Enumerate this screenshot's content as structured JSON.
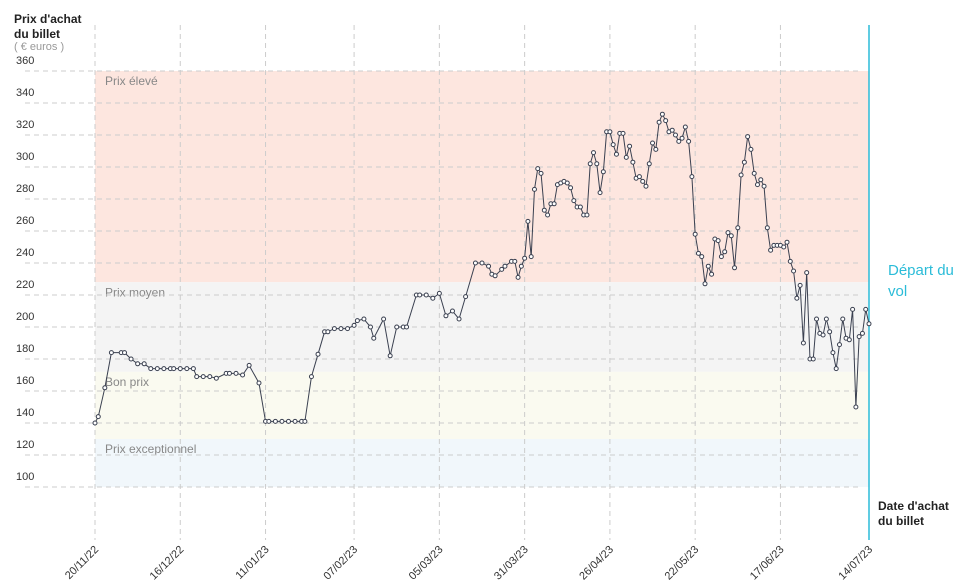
{
  "chart_data": {
    "type": "line",
    "y_label": "Prix d'achat du billet",
    "y_unit": "( € euros )",
    "x_label": "Date d'achat du billet",
    "annotation": {
      "text": "Départ du vol",
      "x": 236,
      "color": "#2bbcd8"
    },
    "bands": [
      {
        "name": "Prix élevé",
        "from": 228,
        "to": 360,
        "color": "#fde6df"
      },
      {
        "name": "Prix moyen",
        "from": 172,
        "to": 228,
        "color": "#f4f4f4"
      },
      {
        "name": "Bon prix",
        "from": 130,
        "to": 172,
        "color": "#fafaf0"
      },
      {
        "name": "Prix exceptionnel",
        "from": 100,
        "to": 130,
        "color": "#f1f7fb"
      }
    ],
    "xlim": [
      0,
      236
    ],
    "ylim": [
      100,
      360
    ],
    "yticks": [
      100,
      120,
      140,
      160,
      180,
      200,
      220,
      240,
      260,
      280,
      300,
      320,
      340,
      360
    ],
    "xticks": [
      {
        "value": 0,
        "label": "20/11/22"
      },
      {
        "value": 26,
        "label": "16/12/22"
      },
      {
        "value": 52,
        "label": "11/01/23"
      },
      {
        "value": 79,
        "label": "07/02/23"
      },
      {
        "value": 105,
        "label": "05/03/23"
      },
      {
        "value": 131,
        "label": "31/03/23"
      },
      {
        "value": 157,
        "label": "26/04/23"
      },
      {
        "value": 183,
        "label": "22/05/23"
      },
      {
        "value": 209,
        "label": "17/06/23"
      },
      {
        "value": 236,
        "label": "14/07/23"
      }
    ],
    "grid": true,
    "color": "#3a4050",
    "x": [
      0,
      1,
      3,
      5,
      8,
      9,
      11,
      13,
      15,
      17,
      19,
      21,
      23,
      24,
      26,
      28,
      30,
      31,
      33,
      35,
      37,
      40,
      41,
      43,
      45,
      47,
      50,
      52,
      53,
      55,
      57,
      59,
      61,
      63,
      64,
      66,
      68,
      70,
      71,
      73,
      75,
      77,
      79,
      80,
      82,
      84,
      85,
      88,
      90,
      92,
      94,
      95,
      98,
      99,
      101,
      103,
      105,
      107,
      109,
      111,
      113,
      116,
      118,
      120,
      121,
      122,
      124,
      125,
      127,
      128,
      129,
      130,
      131,
      132,
      133,
      134,
      135,
      136,
      137,
      138,
      139,
      140,
      141,
      142,
      143,
      144,
      145,
      146,
      147,
      148,
      149,
      150,
      151,
      152,
      153,
      154,
      155,
      156,
      157,
      158,
      159,
      160,
      161,
      162,
      163,
      164,
      165,
      166,
      167,
      168,
      169,
      170,
      171,
      172,
      173,
      174,
      175,
      176,
      177,
      178,
      179,
      180,
      181,
      182,
      183,
      184,
      185,
      186,
      187,
      188,
      189,
      190,
      191,
      192,
      193,
      194,
      195,
      196,
      197,
      198,
      199,
      200,
      201,
      202,
      203,
      204,
      205,
      206,
      207,
      208,
      209,
      210,
      211,
      212,
      213,
      214,
      215,
      216,
      217,
      218,
      219,
      220,
      221,
      222,
      223,
      224,
      225,
      226,
      227,
      228,
      229,
      230,
      231,
      232,
      233,
      234,
      235,
      236
    ],
    "values": [
      140,
      144,
      162,
      184,
      184,
      184,
      180,
      177,
      177,
      174,
      174,
      174,
      174,
      174,
      174,
      174,
      174,
      169,
      169,
      169,
      168,
      171,
      171,
      171,
      170,
      176,
      165,
      141,
      141,
      141,
      141,
      141,
      141,
      141,
      141,
      169,
      183,
      197,
      197,
      199,
      199,
      199,
      201,
      204,
      205,
      200,
      193,
      205,
      182,
      200,
      200,
      200,
      220,
      220,
      220,
      218,
      221,
      207,
      210,
      205,
      219,
      240,
      240,
      238,
      233,
      232,
      236,
      238,
      241,
      241,
      231,
      238,
      243,
      266,
      244,
      286,
      299,
      296,
      273,
      270,
      277,
      277,
      289,
      290,
      291,
      290,
      287,
      279,
      275,
      275,
      270,
      270,
      302,
      309,
      302,
      284,
      297,
      322,
      322,
      314,
      308,
      321,
      321,
      306,
      313,
      303,
      293,
      294,
      291,
      288,
      302,
      315,
      311,
      328,
      333,
      329,
      322,
      323,
      320,
      316,
      318,
      325,
      316,
      294,
      258,
      246,
      244,
      227,
      238,
      233,
      255,
      254,
      244,
      247,
      259,
      257,
      237,
      262,
      295,
      303,
      319,
      311,
      296,
      289,
      292,
      288,
      262,
      248,
      251,
      251,
      251,
      250,
      253,
      241,
      235,
      218,
      226,
      190,
      234,
      180,
      180,
      205,
      196,
      195,
      205,
      197,
      184,
      174,
      189,
      205,
      193,
      192,
      211,
      150,
      194,
      196,
      211,
      202
    ]
  }
}
